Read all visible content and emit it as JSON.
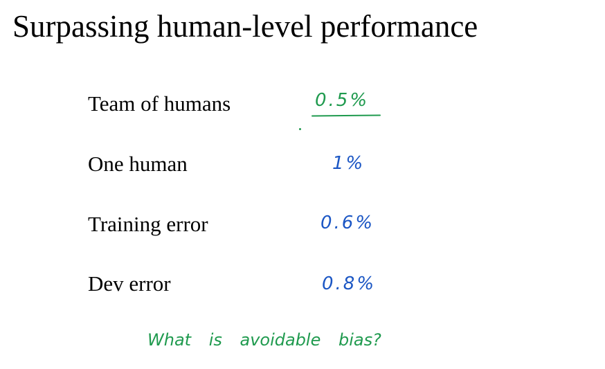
{
  "slide": {
    "title": "Surpassing human-level performance"
  },
  "rows": [
    {
      "label": "Team of humans",
      "value": "0.5%"
    },
    {
      "label": "One human",
      "value": "1%"
    },
    {
      "label": "Training error",
      "value": "0.6%"
    },
    {
      "label": "Dev error",
      "value": "0.8%"
    }
  ],
  "annotation": {
    "question": "What is avoidable bias?"
  },
  "colors": {
    "handwriting_blue": "#1b56c4",
    "handwriting_green": "#1f9a4e",
    "text": "#000000",
    "background": "#ffffff"
  }
}
